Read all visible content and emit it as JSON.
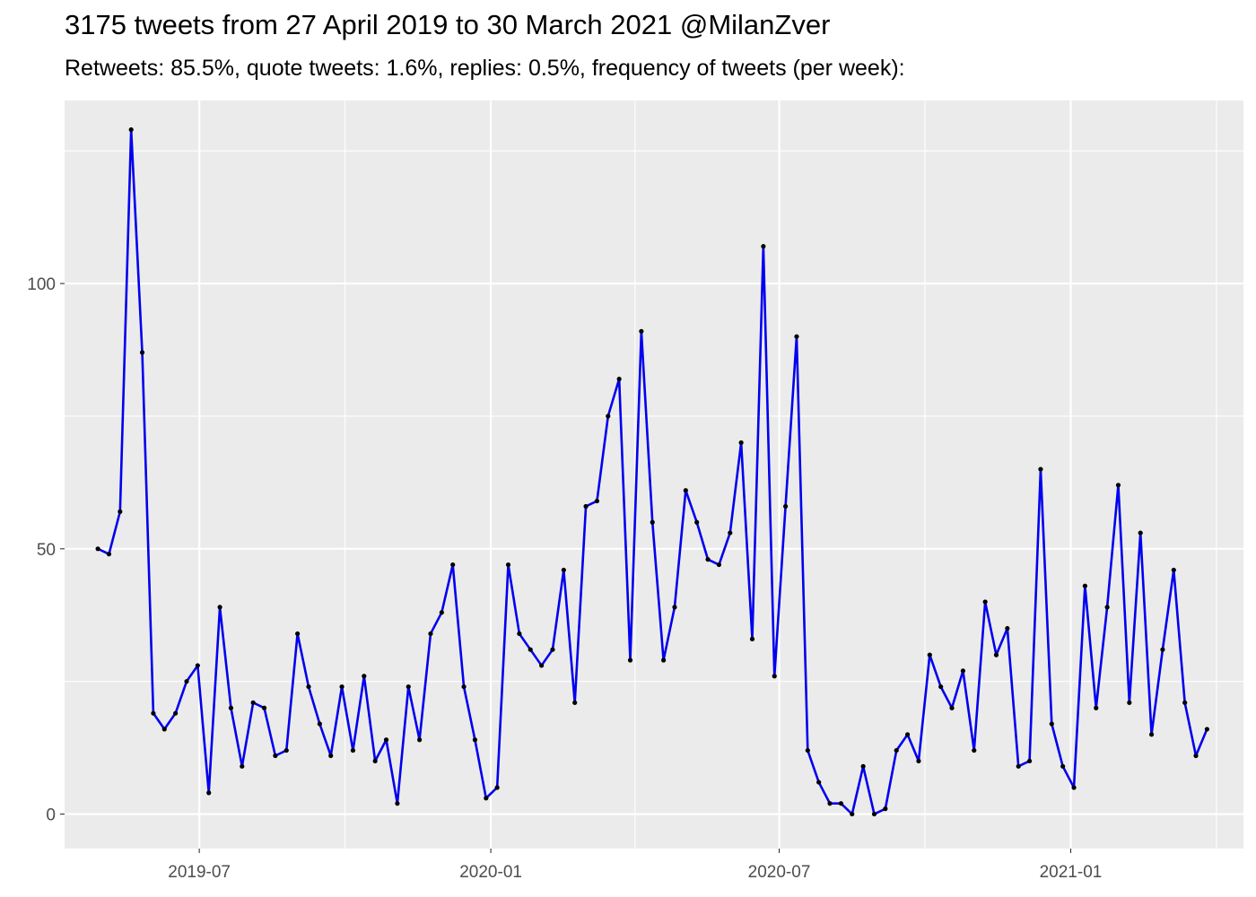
{
  "title": "3175 tweets from 27 April 2019 to 30 March 2021 @MilanZver",
  "subtitle": "Retweets: 85.5%, quote tweets: 1.6%, replies: 0.5%, frequency of tweets (per week):",
  "chart_data": {
    "type": "line",
    "title": "3175 tweets from 27 April 2019 to 30 March 2021 @MilanZver",
    "subtitle": "Retweets: 85.5%, quote tweets: 1.6%, replies: 0.5%, frequency of tweets (per week):",
    "xlabel": "",
    "ylabel": "",
    "x_start": "2019-04-28",
    "x_step_days": 7,
    "xlim": [
      "2019-04-07",
      "2021-04-20"
    ],
    "ylim": [
      -6.5,
      134.5
    ],
    "x_ticks": [
      "2019-07-01",
      "2020-01-01",
      "2020-07-01",
      "2021-01-01"
    ],
    "x_tick_labels": [
      "2019-07",
      "2020-01",
      "2020-07",
      "2021-01"
    ],
    "y_ticks": [
      0,
      50,
      100
    ],
    "y_tick_labels": [
      "0",
      "50",
      "100"
    ],
    "grid": true,
    "line_color": "#0000ee",
    "point_color": "#000000",
    "panel_color": "#ebebeb",
    "series": [
      {
        "values": [
          50,
          49,
          57,
          129,
          87,
          19,
          16,
          19,
          25,
          28,
          4,
          39,
          20,
          9,
          21,
          20,
          11,
          12,
          34,
          24,
          17,
          11,
          24,
          12,
          26,
          10,
          14,
          2,
          24,
          14,
          34,
          38,
          47,
          24,
          14,
          3,
          5,
          47,
          34,
          31,
          28,
          31,
          46,
          21,
          58,
          59,
          75,
          82,
          29,
          91,
          55,
          29,
          39,
          61,
          55,
          48,
          47,
          53,
          70,
          33,
          107,
          26,
          58,
          90,
          12,
          6,
          2,
          2,
          0,
          9,
          0,
          1,
          12,
          15,
          10,
          30,
          24,
          20,
          27,
          12,
          40,
          30,
          35,
          9,
          10,
          65,
          17,
          9,
          5,
          43,
          20,
          39,
          62,
          21,
          53,
          15,
          31,
          46,
          21,
          11,
          16
        ]
      }
    ]
  }
}
